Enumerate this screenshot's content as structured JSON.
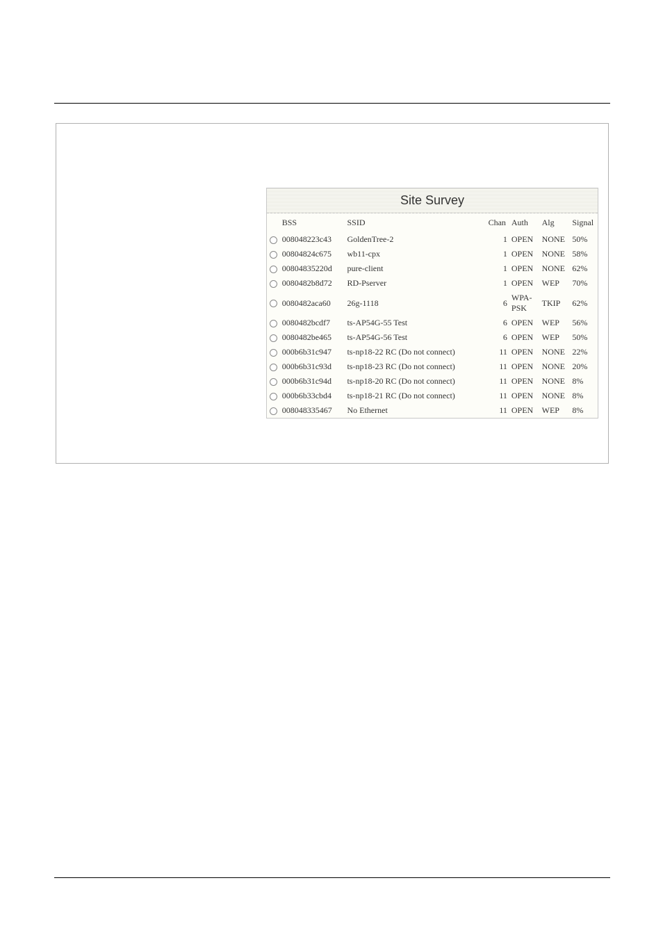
{
  "title": "Site Survey",
  "headers": {
    "bss": "BSS",
    "ssid": "SSID",
    "chan": "Chan",
    "auth": "Auth",
    "alg": "Alg",
    "signal": "Signal"
  },
  "rows": [
    {
      "bss": "008048223c43",
      "ssid": "GoldenTree-2",
      "chan": "1",
      "auth": "OPEN",
      "alg": "NONE",
      "signal": "50%"
    },
    {
      "bss": "00804824c675",
      "ssid": "wb11-cpx",
      "chan": "1",
      "auth": "OPEN",
      "alg": "NONE",
      "signal": "58%"
    },
    {
      "bss": "00804835220d",
      "ssid": "pure-client",
      "chan": "1",
      "auth": "OPEN",
      "alg": "NONE",
      "signal": "62%"
    },
    {
      "bss": "0080482b8d72",
      "ssid": "RD-Pserver",
      "chan": "1",
      "auth": "OPEN",
      "alg": "WEP",
      "signal": "70%"
    },
    {
      "bss": "0080482aca60",
      "ssid": "26g-1118",
      "chan": "6",
      "auth": "WPA-PSK",
      "alg": "TKIP",
      "signal": "62%"
    },
    {
      "bss": "0080482bcdf7",
      "ssid": "ts-AP54G-55 Test",
      "chan": "6",
      "auth": "OPEN",
      "alg": "WEP",
      "signal": "56%"
    },
    {
      "bss": "0080482be465",
      "ssid": "ts-AP54G-56 Test",
      "chan": "6",
      "auth": "OPEN",
      "alg": "WEP",
      "signal": "50%"
    },
    {
      "bss": "000b6b31c947",
      "ssid": "ts-np18-22 RC (Do not connect)",
      "chan": "11",
      "auth": "OPEN",
      "alg": "NONE",
      "signal": "22%"
    },
    {
      "bss": "000b6b31c93d",
      "ssid": "ts-np18-23 RC (Do not connect)",
      "chan": "11",
      "auth": "OPEN",
      "alg": "NONE",
      "signal": "20%"
    },
    {
      "bss": "000b6b31c94d",
      "ssid": "ts-np18-20 RC (Do not connect)",
      "chan": "11",
      "auth": "OPEN",
      "alg": "NONE",
      "signal": "8%"
    },
    {
      "bss": "000b6b33cbd4",
      "ssid": "ts-np18-21 RC (Do not connect)",
      "chan": "11",
      "auth": "OPEN",
      "alg": "NONE",
      "signal": "8%"
    },
    {
      "bss": "008048335467",
      "ssid": "No Ethernet",
      "chan": "11",
      "auth": "OPEN",
      "alg": "WEP",
      "signal": "8%"
    }
  ]
}
